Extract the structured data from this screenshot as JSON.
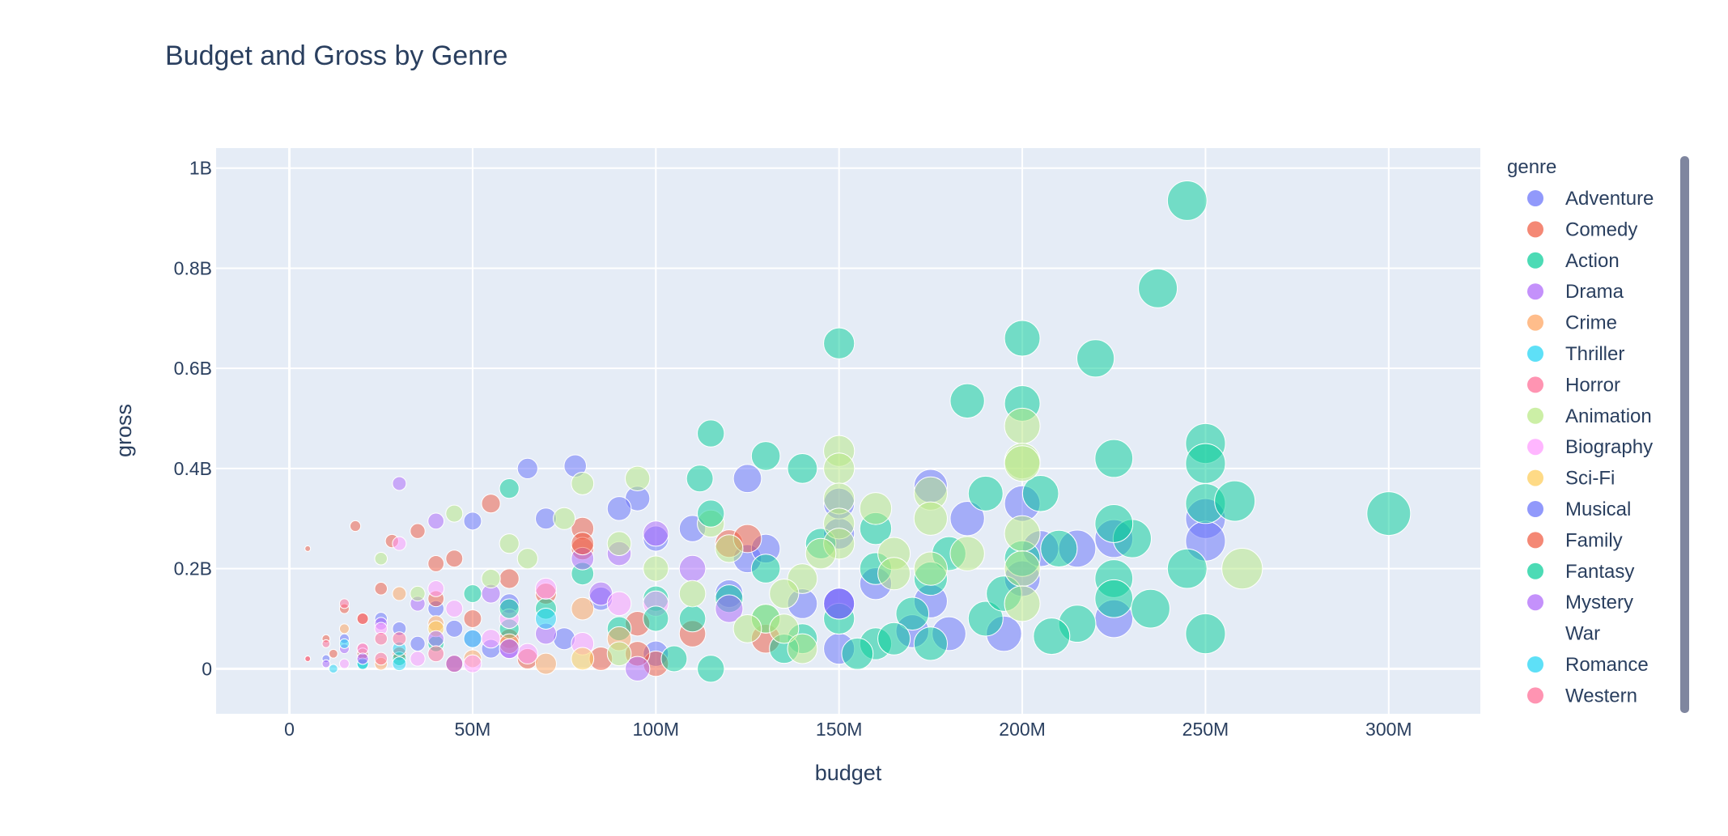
{
  "chart_data": {
    "type": "scatter",
    "title": "Budget and Gross by Genre",
    "xlabel": "budget",
    "ylabel": "gross",
    "xlim": [
      -20000000,
      325000000
    ],
    "ylim": [
      -90000000,
      1040000000
    ],
    "x_ticks": [
      {
        "value": 0,
        "label": "0"
      },
      {
        "value": 50000000,
        "label": "50M"
      },
      {
        "value": 100000000,
        "label": "100M"
      },
      {
        "value": 150000000,
        "label": "150M"
      },
      {
        "value": 200000000,
        "label": "200M"
      },
      {
        "value": 250000000,
        "label": "250M"
      },
      {
        "value": 300000000,
        "label": "300M"
      }
    ],
    "y_ticks": [
      {
        "value": 0,
        "label": "0"
      },
      {
        "value": 200000000,
        "label": "0.2B"
      },
      {
        "value": 400000000,
        "label": "0.4B"
      },
      {
        "value": 600000000,
        "label": "0.6B"
      },
      {
        "value": 800000000,
        "label": "0.8B"
      },
      {
        "value": 1000000000,
        "label": "1B"
      }
    ],
    "grid": true,
    "marker_size_encodes": "budget",
    "legend_title": "genre",
    "legend_position": "right",
    "series": [
      {
        "name": "Adventure",
        "color": "#636efa",
        "points": [
          [
            78,
            405
          ],
          [
            65,
            400
          ],
          [
            95,
            340
          ],
          [
            125,
            380
          ],
          [
            175,
            365
          ],
          [
            200,
            330
          ],
          [
            250,
            300
          ],
          [
            250,
            255
          ],
          [
            225,
            260
          ],
          [
            215,
            240
          ],
          [
            200,
            180
          ],
          [
            195,
            70
          ],
          [
            180,
            70
          ],
          [
            170,
            75
          ],
          [
            175,
            135
          ],
          [
            150,
            130
          ],
          [
            150,
            40
          ],
          [
            150,
            270
          ],
          [
            150,
            330
          ],
          [
            125,
            220
          ],
          [
            130,
            240
          ],
          [
            110,
            280
          ],
          [
            100,
            260
          ],
          [
            120,
            150
          ],
          [
            85,
            140
          ],
          [
            60,
            130
          ],
          [
            50,
            295
          ],
          [
            40,
            120
          ],
          [
            30,
            80
          ],
          [
            20,
            30
          ],
          [
            70,
            300
          ],
          [
            90,
            320
          ],
          [
            140,
            130
          ],
          [
            160,
            170
          ],
          [
            185,
            300
          ],
          [
            205,
            240
          ],
          [
            225,
            100
          ],
          [
            100,
            30
          ],
          [
            75,
            60
          ],
          [
            55,
            40
          ],
          [
            45,
            80
          ],
          [
            35,
            50
          ],
          [
            25,
            100
          ],
          [
            15,
            60
          ],
          [
            10,
            20
          ]
        ]
      },
      {
        "name": "Comedy",
        "color": "#ef553b",
        "points": [
          [
            5,
            240
          ],
          [
            18,
            285
          ],
          [
            28,
            255
          ],
          [
            35,
            275
          ],
          [
            45,
            220
          ],
          [
            55,
            330
          ],
          [
            60,
            180
          ],
          [
            80,
            280
          ],
          [
            80,
            240
          ],
          [
            100,
            10
          ],
          [
            95,
            30
          ],
          [
            85,
            20
          ],
          [
            120,
            250
          ],
          [
            125,
            260
          ],
          [
            95,
            90
          ],
          [
            60,
            60
          ],
          [
            40,
            140
          ],
          [
            25,
            160
          ],
          [
            15,
            120
          ],
          [
            10,
            60
          ],
          [
            5,
            20
          ],
          [
            30,
            30
          ],
          [
            50,
            100
          ],
          [
            70,
            150
          ],
          [
            110,
            70
          ],
          [
            130,
            60
          ],
          [
            65,
            20
          ],
          [
            45,
            10
          ],
          [
            20,
            40
          ],
          [
            12,
            30
          ]
        ]
      },
      {
        "name": "Action",
        "color": "#00cc96",
        "points": [
          [
            245,
            935
          ],
          [
            237,
            760
          ],
          [
            150,
            650
          ],
          [
            200,
            660
          ],
          [
            220,
            620
          ],
          [
            185,
            535
          ],
          [
            200,
            530
          ],
          [
            250,
            450
          ],
          [
            250,
            410
          ],
          [
            225,
            420
          ],
          [
            205,
            350
          ],
          [
            190,
            350
          ],
          [
            140,
            400
          ],
          [
            130,
            425
          ],
          [
            115,
            470
          ],
          [
            112,
            380
          ],
          [
            60,
            360
          ],
          [
            250,
            330
          ],
          [
            258,
            335
          ],
          [
            245,
            200
          ],
          [
            250,
            70
          ],
          [
            300,
            310
          ],
          [
            230,
            260
          ],
          [
            225,
            290
          ],
          [
            225,
            180
          ],
          [
            225,
            140
          ],
          [
            215,
            90
          ],
          [
            208,
            65
          ],
          [
            210,
            240
          ],
          [
            200,
            220
          ],
          [
            190,
            100
          ],
          [
            180,
            230
          ],
          [
            175,
            180
          ],
          [
            170,
            110
          ],
          [
            160,
            280
          ],
          [
            160,
            200
          ],
          [
            160,
            50
          ],
          [
            150,
            100
          ],
          [
            145,
            250
          ],
          [
            140,
            60
          ],
          [
            130,
            100
          ],
          [
            120,
            140
          ],
          [
            115,
            0
          ],
          [
            110,
            100
          ],
          [
            100,
            140
          ],
          [
            90,
            80
          ],
          [
            80,
            190
          ],
          [
            70,
            120
          ],
          [
            60,
            80
          ],
          [
            50,
            150
          ],
          [
            40,
            50
          ],
          [
            30,
            20
          ],
          [
            20,
            10
          ],
          [
            175,
            50
          ],
          [
            195,
            150
          ],
          [
            235,
            120
          ],
          [
            165,
            60
          ],
          [
            155,
            30
          ],
          [
            135,
            40
          ],
          [
            105,
            20
          ]
        ]
      },
      {
        "name": "Drama",
        "color": "#ab63fa",
        "points": [
          [
            30,
            370
          ],
          [
            40,
            295
          ],
          [
            55,
            150
          ],
          [
            80,
            220
          ],
          [
            100,
            270
          ],
          [
            110,
            200
          ],
          [
            150,
            130
          ],
          [
            90,
            230
          ],
          [
            60,
            40
          ],
          [
            45,
            10
          ],
          [
            25,
            90
          ],
          [
            15,
            40
          ],
          [
            70,
            70
          ],
          [
            95,
            0
          ],
          [
            120,
            120
          ],
          [
            35,
            130
          ],
          [
            20,
            20
          ],
          [
            10,
            10
          ],
          [
            50,
            60
          ],
          [
            85,
            150
          ]
        ]
      },
      {
        "name": "Crime",
        "color": "#ffa15a",
        "points": [
          [
            40,
            90
          ],
          [
            60,
            50
          ],
          [
            80,
            120
          ],
          [
            20,
            30
          ],
          [
            30,
            150
          ],
          [
            50,
            20
          ],
          [
            70,
            10
          ],
          [
            90,
            60
          ],
          [
            15,
            80
          ],
          [
            25,
            10
          ]
        ]
      },
      {
        "name": "Thriller",
        "color": "#19d3f3",
        "points": [
          [
            50,
            60
          ],
          [
            12,
            0
          ],
          [
            30,
            40
          ],
          [
            70,
            100
          ],
          [
            20,
            10
          ]
        ]
      },
      {
        "name": "Horror",
        "color": "#ff6692",
        "points": [
          [
            20,
            100
          ],
          [
            10,
            50
          ],
          [
            15,
            130
          ],
          [
            5,
            20
          ],
          [
            30,
            60
          ],
          [
            25,
            20
          ]
        ]
      },
      {
        "name": "Animation",
        "color": "#b6e880",
        "points": [
          [
            200,
            485
          ],
          [
            200,
            415
          ],
          [
            200,
            410
          ],
          [
            200,
            270
          ],
          [
            200,
            200
          ],
          [
            200,
            130
          ],
          [
            150,
            435
          ],
          [
            150,
            400
          ],
          [
            150,
            340
          ],
          [
            150,
            290
          ],
          [
            150,
            250
          ],
          [
            145,
            230
          ],
          [
            140,
            180
          ],
          [
            135,
            150
          ],
          [
            130,
            100
          ],
          [
            125,
            80
          ],
          [
            175,
            350
          ],
          [
            175,
            300
          ],
          [
            175,
            200
          ],
          [
            165,
            230
          ],
          [
            165,
            190
          ],
          [
            160,
            320
          ],
          [
            185,
            230
          ],
          [
            260,
            200
          ],
          [
            120,
            240
          ],
          [
            115,
            290
          ],
          [
            110,
            150
          ],
          [
            100,
            200
          ],
          [
            95,
            380
          ],
          [
            90,
            250
          ],
          [
            80,
            370
          ],
          [
            75,
            300
          ],
          [
            65,
            220
          ],
          [
            60,
            250
          ],
          [
            45,
            310
          ],
          [
            55,
            180
          ],
          [
            35,
            150
          ],
          [
            25,
            220
          ],
          [
            135,
            80
          ],
          [
            140,
            40
          ],
          [
            90,
            30
          ]
        ]
      },
      {
        "name": "Biography",
        "color": "#ff97ff",
        "points": [
          [
            30,
            250
          ],
          [
            40,
            160
          ],
          [
            60,
            100
          ],
          [
            80,
            50
          ],
          [
            20,
            40
          ],
          [
            50,
            10
          ],
          [
            35,
            20
          ],
          [
            70,
            160
          ],
          [
            90,
            130
          ],
          [
            100,
            130
          ],
          [
            25,
            80
          ],
          [
            55,
            60
          ],
          [
            15,
            10
          ],
          [
            45,
            120
          ],
          [
            65,
            30
          ]
        ]
      },
      {
        "name": "Sci-Fi",
        "color": "#fecb52",
        "points": [
          [
            40,
            80
          ],
          [
            80,
            20
          ]
        ]
      },
      {
        "name": "Musical",
        "color": "#636efa",
        "points": [
          [
            150,
            130
          ]
        ]
      },
      {
        "name": "Family",
        "color": "#ef553b",
        "points": [
          [
            80,
            250
          ],
          [
            40,
            210
          ],
          [
            20,
            100
          ]
        ]
      },
      {
        "name": "Fantasy",
        "color": "#00cc96",
        "points": [
          [
            115,
            310
          ],
          [
            130,
            200
          ],
          [
            100,
            100
          ],
          [
            60,
            120
          ]
        ]
      },
      {
        "name": "Mystery",
        "color": "#ab63fa",
        "points": [
          [
            40,
            60
          ],
          [
            20,
            20
          ],
          [
            60,
            40
          ]
        ]
      },
      {
        "name": "War",
        "color": "#ffa15a",
        "points": []
      },
      {
        "name": "Romance",
        "color": "#19d3f3",
        "points": [
          [
            30,
            10
          ],
          [
            15,
            50
          ]
        ]
      },
      {
        "name": "Western",
        "color": "#ff6692",
        "points": [
          [
            40,
            30
          ],
          [
            25,
            60
          ]
        ]
      }
    ]
  },
  "legend_icons": {
    "Adventure": "circle",
    "Comedy": "circle",
    "Action": "circle",
    "Drama": "circle",
    "Crime": "circle",
    "Thriller": "circle",
    "Horror": "circle",
    "Animation": "circle",
    "Biography": "circle",
    "Sci-Fi": "circle",
    "Musical": "circle",
    "Family": "circle",
    "Fantasy": "circle",
    "Mystery": "circle",
    "War": "none",
    "Romance": "circle",
    "Western": "circle"
  }
}
